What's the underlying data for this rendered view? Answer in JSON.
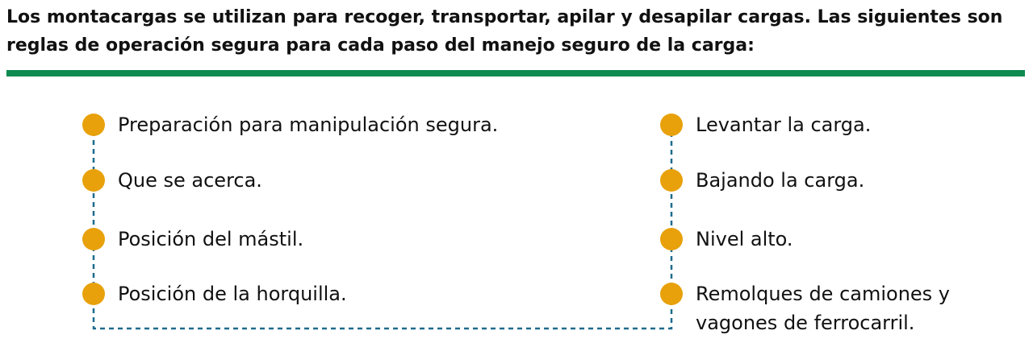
{
  "intro": {
    "text": "Los montacargas se utilizan para recoger, transportar, apilar y desapilar cargas. Las siguientes son reglas de operación segura para cada paso del manejo seguro de la carga:"
  },
  "colors": {
    "rule": "#0c8a50",
    "dot": "#e8a10b",
    "connector": "#1f6b8c"
  },
  "left_steps": [
    {
      "label": "Preparación para manipulación segura."
    },
    {
      "label": "Que se acerca."
    },
    {
      "label": "Posición del mástil."
    },
    {
      "label": "Posición de la horquilla."
    }
  ],
  "right_steps": [
    {
      "label": "Levantar la carga."
    },
    {
      "label": "Bajando la carga."
    },
    {
      "label": "Nivel alto."
    },
    {
      "label": "Remolques de camiones y vagones de ferrocarril."
    }
  ]
}
